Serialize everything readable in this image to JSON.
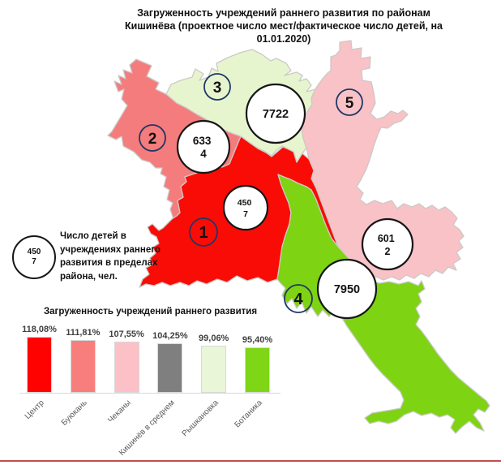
{
  "title": {
    "line1": "Загруженность учреждений раннего развития по районам",
    "line2": "Кишинёва (проектное число мест/фактическое число детей, на",
    "line3": "01.01.2020)"
  },
  "colors": {
    "district_red": "#F90C06",
    "district_salmon": "#F47C7D",
    "district_lightgreen": "#E7F5CE",
    "district_pink": "#F9C2C6",
    "district_green": "#7ED313",
    "badge_stroke": "#1F3864",
    "bottom_line": "#C0504D"
  },
  "map": {
    "badges": [
      {
        "number": "1"
      },
      {
        "number": "2"
      },
      {
        "number": "3"
      },
      {
        "number": "4"
      },
      {
        "number": "5"
      }
    ],
    "markers": [
      {
        "district": "3",
        "line1": "7722",
        "line2": ""
      },
      {
        "district": "2",
        "line1": "633",
        "line2": "4"
      },
      {
        "district": "1",
        "line1": "450",
        "line2": "7"
      },
      {
        "district": "5",
        "line1": "601",
        "line2": "2"
      },
      {
        "district": "4",
        "line1": "7950",
        "line2": ""
      }
    ]
  },
  "legend": {
    "circle_line1": "450",
    "circle_line2": "7",
    "lines": [
      "Число детей в",
      "учреждениях раннего",
      "развития в пределах",
      "района, чел."
    ]
  },
  "chart_data": {
    "type": "bar",
    "title": "Загруженность учреждений раннего развития",
    "categories": [
      "Центр",
      "Буюкань",
      "Чеканы",
      "Кишинёв в среднем",
      "Рышкановка",
      "Ботаника"
    ],
    "values": [
      118.08,
      111.81,
      107.55,
      104.25,
      99.06,
      95.4
    ],
    "value_labels": [
      "118,08%",
      "111,81%",
      "107,55%",
      "104,25%",
      "99,06%",
      "95,40%"
    ],
    "colors": [
      "#FE0202",
      "#F87D7D",
      "#FBC1C6",
      "#7F7F7F",
      "#E9F6D8",
      "#7ED616"
    ],
    "xlabel": "",
    "ylabel": "",
    "ylim": [
      0,
      125
    ],
    "unit": "%",
    "grid": false,
    "legend_position": "none"
  }
}
